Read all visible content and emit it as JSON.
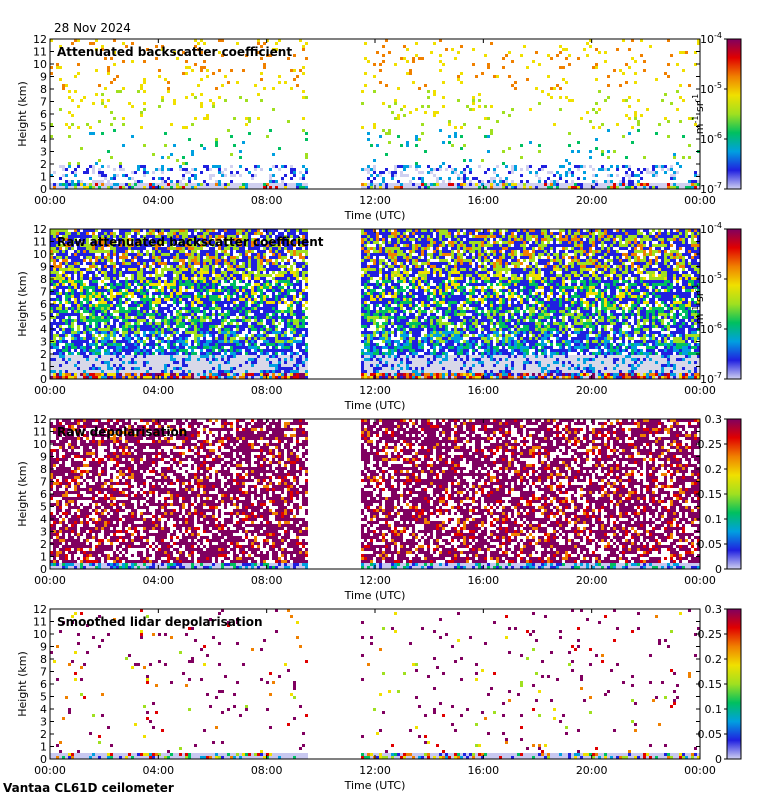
{
  "header": {
    "date": "28 Nov 2024"
  },
  "footer": {
    "instrument": "Vantaa CL61D ceilometer"
  },
  "axes": {
    "xlabel": "Time (UTC)",
    "ylabel": "Height (km)",
    "x_ticks": [
      "00:00",
      "04:00",
      "08:00",
      "12:00",
      "16:00",
      "20:00",
      "00:00"
    ],
    "y_ticks": [
      "0",
      "1",
      "2",
      "3",
      "4",
      "5",
      "6",
      "7",
      "8",
      "9",
      "10",
      "11",
      "12"
    ]
  },
  "colors": {
    "scale": [
      "#d0d0f0",
      "#2020e0",
      "#00a0e0",
      "#00c060",
      "#a0e020",
      "#f0e000",
      "#f08000",
      "#e00000",
      "#800060"
    ]
  },
  "chart_data": [
    {
      "type": "heatmap",
      "title": "Attenuated backscatter coefficient",
      "xlabel": "Time (UTC)",
      "ylabel": "Height (km)",
      "xlim": [
        0,
        24
      ],
      "ylim": [
        0,
        12
      ],
      "data_gap_hours": [
        9.5,
        11.5
      ],
      "colorbar": {
        "scale": "log",
        "range": [
          1e-07,
          0.0001
        ],
        "unit": "m-1 sr-1",
        "tick_labels": [
          "10-7",
          "10-6",
          "10-5",
          "10-4"
        ]
      },
      "regime": "sparse"
    },
    {
      "type": "heatmap",
      "title": "Raw attenuated backscatter coefficient",
      "xlabel": "Time (UTC)",
      "ylabel": "Height (km)",
      "xlim": [
        0,
        24
      ],
      "ylim": [
        0,
        12
      ],
      "data_gap_hours": [
        9.5,
        11.5
      ],
      "colorbar": {
        "scale": "log",
        "range": [
          1e-07,
          0.0001
        ],
        "unit": "m-1 sr-1",
        "tick_labels": [
          "10-7",
          "10-6",
          "10-5",
          "10-4"
        ]
      },
      "regime": "dense-backscatter"
    },
    {
      "type": "heatmap",
      "title": "Raw depolarisation",
      "xlabel": "Time (UTC)",
      "ylabel": "Height (km)",
      "xlim": [
        0,
        24
      ],
      "ylim": [
        0,
        12
      ],
      "data_gap_hours": [
        9.5,
        11.5
      ],
      "colorbar": {
        "scale": "linear",
        "range": [
          0,
          0.3
        ],
        "tick_labels": [
          "0",
          "0.05",
          "0.1",
          "0.15",
          "0.2",
          "0.25",
          "0.3"
        ]
      },
      "regime": "dense-depol"
    },
    {
      "type": "heatmap",
      "title": "Smoothed lidar depolarisation",
      "xlabel": "Time (UTC)",
      "ylabel": "Height (km)",
      "xlim": [
        0,
        24
      ],
      "ylim": [
        0,
        12
      ],
      "data_gap_hours": [
        9.5,
        11.5
      ],
      "colorbar": {
        "scale": "linear",
        "range": [
          0,
          0.3
        ],
        "tick_labels": [
          "0",
          "0.05",
          "0.1",
          "0.15",
          "0.2",
          "0.25",
          "0.3"
        ]
      },
      "regime": "sparse-depol"
    }
  ]
}
